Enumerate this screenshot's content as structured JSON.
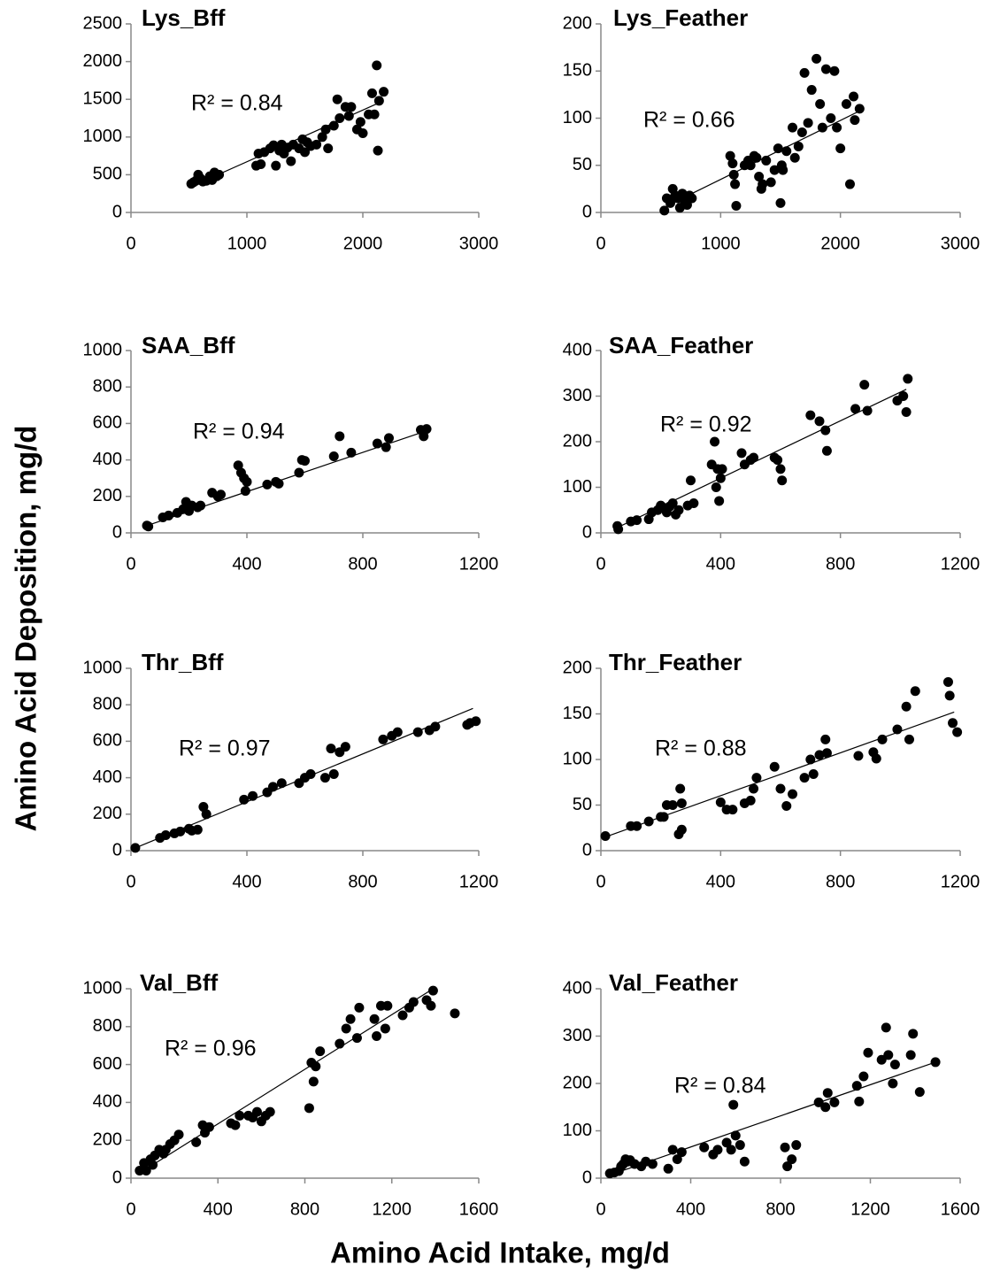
{
  "xlabel": "Amino Acid Intake, mg/d",
  "ylabel": "Amino Acid Deposition, mg/d",
  "chart_data": [
    {
      "type": "scatter",
      "title": "Lys_Bff",
      "annotation": "R² = 0.84",
      "color": "#000000",
      "xlim": [
        0,
        3000
      ],
      "xticks": [
        0,
        1000,
        2000,
        3000
      ],
      "ylim": [
        0,
        2500
      ],
      "yticks": [
        0,
        500,
        1000,
        1500,
        2000,
        2500
      ],
      "x": [
        520,
        540,
        560,
        580,
        600,
        620,
        650,
        680,
        700,
        720,
        740,
        760,
        1080,
        1100,
        1120,
        1150,
        1200,
        1230,
        1250,
        1280,
        1300,
        1320,
        1350,
        1380,
        1400,
        1450,
        1480,
        1500,
        1520,
        1550,
        1600,
        1650,
        1680,
        1700,
        1750,
        1780,
        1800,
        1850,
        1880,
        1900,
        1950,
        1980,
        2000,
        2050,
        2080,
        2100,
        2120,
        2130,
        2140,
        2180
      ],
      "values": [
        380,
        400,
        420,
        500,
        450,
        410,
        420,
        480,
        430,
        530,
        480,
        500,
        620,
        780,
        640,
        800,
        850,
        890,
        620,
        820,
        900,
        780,
        860,
        680,
        900,
        850,
        970,
        800,
        930,
        880,
        900,
        1000,
        1100,
        850,
        1150,
        1500,
        1250,
        1400,
        1280,
        1400,
        1100,
        1200,
        1050,
        1300,
        1580,
        1300,
        1950,
        820,
        1480,
        1600
      ],
      "trendline": {
        "x": [
          500,
          2150
        ],
        "y": [
          330,
          1460
        ]
      }
    },
    {
      "type": "scatter",
      "title": "Lys_Feather",
      "annotation": "R² = 0.66",
      "color": "#000000",
      "xlim": [
        0,
        3000
      ],
      "xticks": [
        0,
        1000,
        2000,
        3000
      ],
      "ylim": [
        0,
        200
      ],
      "yticks": [
        0,
        50,
        100,
        150,
        200
      ],
      "x": [
        530,
        550,
        580,
        600,
        620,
        640,
        660,
        680,
        700,
        720,
        740,
        760,
        1080,
        1100,
        1110,
        1120,
        1130,
        1200,
        1230,
        1250,
        1280,
        1300,
        1320,
        1340,
        1350,
        1380,
        1420,
        1450,
        1480,
        1500,
        1510,
        1520,
        1550,
        1600,
        1620,
        1650,
        1680,
        1700,
        1730,
        1760,
        1800,
        1830,
        1850,
        1880,
        1920,
        1950,
        1970,
        2000,
        2050,
        2080,
        2110,
        2120,
        2160
      ],
      "values": [
        2,
        15,
        10,
        25,
        18,
        15,
        5,
        20,
        12,
        8,
        18,
        15,
        60,
        52,
        40,
        30,
        7,
        50,
        55,
        50,
        60,
        58,
        38,
        25,
        30,
        55,
        32,
        45,
        68,
        10,
        50,
        45,
        65,
        90,
        58,
        70,
        85,
        148,
        95,
        130,
        163,
        115,
        90,
        152,
        100,
        150,
        90,
        68,
        115,
        30,
        123,
        98,
        110
      ],
      "trendline": {
        "x": [
          520,
          2150
        ],
        "y": [
          5,
          107
        ]
      }
    },
    {
      "type": "scatter",
      "title": "SAA_Bff",
      "annotation": "R² = 0.94",
      "color": "#000000",
      "xlim": [
        0,
        1200
      ],
      "xticks": [
        0,
        400,
        800,
        1200
      ],
      "ylim": [
        0,
        1000
      ],
      "yticks": [
        0,
        200,
        400,
        600,
        800,
        1000
      ],
      "x": [
        55,
        60,
        110,
        130,
        160,
        180,
        190,
        200,
        210,
        230,
        240,
        280,
        300,
        310,
        370,
        380,
        390,
        395,
        400,
        470,
        500,
        510,
        580,
        590,
        600,
        700,
        720,
        760,
        850,
        880,
        890,
        1000,
        1010,
        1020
      ],
      "values": [
        40,
        35,
        85,
        95,
        110,
        130,
        170,
        120,
        150,
        140,
        150,
        220,
        200,
        210,
        370,
        330,
        300,
        230,
        280,
        265,
        280,
        270,
        330,
        400,
        395,
        420,
        530,
        440,
        490,
        470,
        520,
        565,
        530,
        570
      ],
      "trendline": {
        "x": [
          55,
          1020
        ],
        "y": [
          40,
          560
        ]
      }
    },
    {
      "type": "scatter",
      "title": "SAA_Feather",
      "annotation": "R² = 0.92",
      "color": "#000000",
      "xlim": [
        0,
        1200
      ],
      "xticks": [
        0,
        400,
        800,
        1200
      ],
      "ylim": [
        0,
        400
      ],
      "yticks": [
        0,
        100,
        200,
        300,
        400
      ],
      "x": [
        55,
        58,
        100,
        120,
        160,
        170,
        190,
        200,
        210,
        220,
        230,
        240,
        250,
        260,
        290,
        300,
        310,
        370,
        380,
        385,
        390,
        395,
        400,
        405,
        470,
        480,
        500,
        510,
        580,
        590,
        600,
        605,
        700,
        730,
        750,
        755,
        850,
        880,
        890,
        990,
        1010,
        1020,
        1025
      ],
      "values": [
        15,
        8,
        25,
        28,
        30,
        45,
        50,
        60,
        55,
        45,
        58,
        65,
        40,
        50,
        60,
        115,
        65,
        150,
        200,
        100,
        140,
        70,
        120,
        140,
        175,
        150,
        160,
        165,
        165,
        160,
        140,
        115,
        258,
        245,
        225,
        180,
        272,
        325,
        268,
        290,
        300,
        265,
        338
      ],
      "trendline": {
        "x": [
          50,
          1020
        ],
        "y": [
          10,
          315
        ]
      }
    },
    {
      "type": "scatter",
      "title": "Thr_Bff",
      "annotation": "R² = 0.97",
      "color": "#000000",
      "xlim": [
        0,
        1200
      ],
      "xticks": [
        0,
        400,
        800,
        1200
      ],
      "ylim": [
        0,
        1000
      ],
      "yticks": [
        0,
        200,
        400,
        600,
        800,
        1000
      ],
      "x": [
        15,
        100,
        120,
        150,
        170,
        200,
        210,
        230,
        250,
        260,
        390,
        420,
        470,
        490,
        520,
        580,
        600,
        620,
        670,
        690,
        700,
        720,
        740,
        870,
        900,
        920,
        990,
        1030,
        1050,
        1160,
        1170,
        1190
      ],
      "values": [
        15,
        70,
        85,
        95,
        105,
        120,
        110,
        115,
        240,
        200,
        280,
        300,
        320,
        350,
        370,
        370,
        400,
        420,
        400,
        560,
        420,
        540,
        570,
        610,
        630,
        650,
        650,
        660,
        680,
        690,
        700,
        710
      ],
      "trendline": {
        "x": [
          15,
          1180
        ],
        "y": [
          15,
          780
        ]
      }
    },
    {
      "type": "scatter",
      "title": "Thr_Feather",
      "annotation": "R² = 0.88",
      "color": "#000000",
      "xlim": [
        0,
        1200
      ],
      "xticks": [
        0,
        400,
        800,
        1200
      ],
      "ylim": [
        0,
        200
      ],
      "yticks": [
        0,
        50,
        100,
        150,
        200
      ],
      "x": [
        15,
        100,
        120,
        160,
        200,
        210,
        220,
        240,
        260,
        265,
        270,
        270,
        400,
        420,
        440,
        480,
        500,
        510,
        520,
        580,
        600,
        620,
        640,
        680,
        700,
        710,
        730,
        750,
        755,
        860,
        910,
        920,
        940,
        990,
        1020,
        1030,
        1050,
        1160,
        1165,
        1175,
        1190
      ],
      "values": [
        16,
        27,
        27,
        32,
        37,
        37,
        50,
        50,
        18,
        68,
        52,
        23,
        53,
        45,
        45,
        52,
        55,
        68,
        80,
        92,
        68,
        49,
        62,
        80,
        100,
        84,
        105,
        122,
        107,
        104,
        108,
        101,
        122,
        133,
        158,
        122,
        175,
        185,
        170,
        140,
        130
      ],
      "trendline": {
        "x": [
          15,
          1180
        ],
        "y": [
          15,
          152
        ]
      }
    },
    {
      "type": "scatter",
      "title": "Val_Bff",
      "annotation": "R² = 0.96",
      "color": "#000000",
      "xlim": [
        0,
        1600
      ],
      "xticks": [
        0,
        400,
        800,
        1200,
        1600
      ],
      "ylim": [
        0,
        1000
      ],
      "yticks": [
        0,
        200,
        400,
        600,
        800,
        1000
      ],
      "x": [
        40,
        60,
        70,
        90,
        100,
        110,
        130,
        150,
        160,
        180,
        200,
        220,
        300,
        330,
        340,
        360,
        460,
        480,
        500,
        540,
        560,
        580,
        600,
        620,
        640,
        820,
        830,
        840,
        850,
        870,
        960,
        990,
        1010,
        1040,
        1050,
        1120,
        1130,
        1150,
        1170,
        1180,
        1250,
        1280,
        1300,
        1360,
        1380,
        1390,
        1490
      ],
      "values": [
        40,
        80,
        40,
        100,
        70,
        120,
        150,
        130,
        150,
        180,
        200,
        230,
        190,
        280,
        240,
        270,
        290,
        280,
        330,
        330,
        320,
        350,
        300,
        330,
        350,
        370,
        610,
        510,
        590,
        670,
        710,
        790,
        840,
        740,
        900,
        840,
        750,
        910,
        790,
        910,
        860,
        900,
        930,
        940,
        910,
        990,
        870
      ],
      "trendline": {
        "x": [
          30,
          1390
        ],
        "y": [
          20,
          1000
        ]
      }
    },
    {
      "type": "scatter",
      "title": "Val_Feather",
      "annotation": "R² = 0.84",
      "color": "#000000",
      "xlim": [
        0,
        1600
      ],
      "xticks": [
        0,
        400,
        800,
        1200,
        1600
      ],
      "ylim": [
        0,
        400
      ],
      "yticks": [
        0,
        100,
        200,
        300,
        400
      ],
      "x": [
        40,
        60,
        80,
        90,
        100,
        110,
        120,
        130,
        150,
        180,
        200,
        230,
        300,
        320,
        340,
        360,
        460,
        500,
        520,
        560,
        580,
        590,
        600,
        620,
        640,
        820,
        830,
        850,
        870,
        970,
        1000,
        1010,
        1040,
        1140,
        1150,
        1170,
        1190,
        1250,
        1270,
        1280,
        1300,
        1310,
        1380,
        1390,
        1420,
        1490
      ],
      "values": [
        10,
        12,
        15,
        25,
        30,
        40,
        35,
        38,
        30,
        25,
        35,
        30,
        20,
        60,
        40,
        55,
        65,
        50,
        60,
        75,
        60,
        155,
        90,
        70,
        35,
        65,
        25,
        40,
        70,
        160,
        150,
        180,
        160,
        195,
        162,
        215,
        265,
        250,
        318,
        260,
        200,
        240,
        260,
        305,
        182,
        245
      ],
      "trendline": {
        "x": [
          30,
          1490
        ],
        "y": [
          5,
          245
        ]
      }
    }
  ]
}
